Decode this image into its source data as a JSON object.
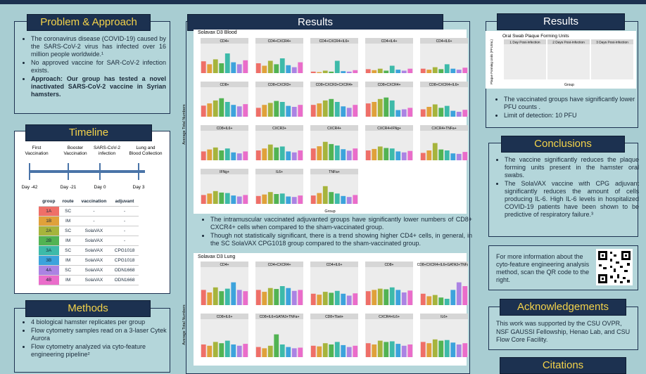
{
  "problem": {
    "title": "Problem & Approach",
    "bullets": [
      "The coronavirus disease (COVID-19) caused by the SARS-CoV-2 virus has infected over 16 million people worldwide.¹",
      "No approved vaccine for SAR-CoV-2 infection exists.",
      "Approach: Our group has tested a novel inactivated SARS-CoV-2 vaccine in Syrian hamsters."
    ]
  },
  "timeline": {
    "title": "Timeline",
    "events": [
      {
        "label": "First Vaccination",
        "day": "Day -42"
      },
      {
        "label": "Booster Vaccination",
        "day": "Day -21"
      },
      {
        "label": "SARS-CoV-2 infection",
        "day": "Day 0"
      },
      {
        "label": "Lung and Blood Collection",
        "day": "Day 3"
      }
    ],
    "table": {
      "header": [
        "group",
        "route",
        "vaccination",
        "adjuvant"
      ],
      "rows": [
        {
          "group": "1A",
          "route": "SC",
          "vaccination": "-",
          "adjuvant": "-",
          "color": "#ef6f68"
        },
        {
          "group": "1B",
          "route": "IM",
          "vaccination": "-",
          "adjuvant": "-",
          "color": "#e0a13a"
        },
        {
          "group": "2A",
          "route": "SC",
          "vaccination": "SolaVAX",
          "adjuvant": "-",
          "color": "#a6b43c"
        },
        {
          "group": "2B",
          "route": "IM",
          "vaccination": "SolaVAX",
          "adjuvant": "-",
          "color": "#52b353"
        },
        {
          "group": "3A",
          "route": "SC",
          "vaccination": "SolaVAX",
          "adjuvant": "CPG1018",
          "color": "#3dbaa9"
        },
        {
          "group": "3B",
          "route": "IM",
          "vaccination": "SolaVAX",
          "adjuvant": "CPG1018",
          "color": "#3ca3dc"
        },
        {
          "group": "4A",
          "route": "SC",
          "vaccination": "SolaVAX",
          "adjuvant": "ODN1668",
          "color": "#ab83e3"
        },
        {
          "group": "4B",
          "route": "IM",
          "vaccination": "SolaVAX",
          "adjuvant": "ODN1668",
          "color": "#ea6dca"
        }
      ]
    }
  },
  "methods": {
    "title": "Methods",
    "bullets": [
      "4 biological hamster replicates per group",
      "Flow cytometry samples read on a 3-laser Cytek Aurora",
      "Flow cytometry analyzed via cyto-feature engineering pipeline²"
    ]
  },
  "results": {
    "title": "Results",
    "blood": {
      "title": "Solavax D3 Blood",
      "y_label": "Average Total Numbers",
      "x_label": "Group",
      "panels": [
        {
          "title": "CD4+",
          "ylim": [
            0,
            30000
          ],
          "values": [
            12000,
            9000,
            14000,
            10000,
            20000,
            11000,
            9000,
            13000
          ]
        },
        {
          "title": "CD4+CXCR4+",
          "ylim": [
            0,
            6000
          ],
          "values": [
            2000,
            1500,
            2500,
            1800,
            3000,
            1600,
            1200,
            2200
          ]
        },
        {
          "title": "CD4+CXCR4+IL6+",
          "ylim": [
            0,
            6000
          ],
          "values": [
            300,
            200,
            500,
            300,
            2500,
            400,
            300,
            600
          ]
        },
        {
          "title": "CD4+IL4+",
          "ylim": [
            0,
            6000
          ],
          "values": [
            800,
            600,
            900,
            500,
            1500,
            700,
            500,
            900
          ]
        },
        {
          "title": "CD4+IL6+",
          "ylim": [
            0,
            6000
          ],
          "values": [
            900,
            700,
            1200,
            800,
            1800,
            900,
            700,
            1100
          ]
        },
        {
          "title": "CD8+",
          "ylim": [
            0,
            40000
          ],
          "values": [
            15000,
            18000,
            22000,
            25000,
            20000,
            16000,
            14000,
            17000
          ]
        },
        {
          "title": "CD8+CXCR3+",
          "ylim": [
            0,
            3000
          ],
          "values": [
            900,
            1200,
            1400,
            1600,
            1500,
            1100,
            1000,
            1200
          ]
        },
        {
          "title": "CD8+CXCR3+CXCR4+",
          "ylim": [
            0,
            20000
          ],
          "values": [
            8000,
            9000,
            11000,
            12000,
            10000,
            7000,
            6000,
            8000
          ]
        },
        {
          "title": "CD8+CXCR4+",
          "ylim": [
            0,
            40000
          ],
          "values": [
            18000,
            20000,
            24000,
            26000,
            22000,
            9000,
            10000,
            12000
          ]
        },
        {
          "title": "CD8+CXCR4+IL6+",
          "ylim": [
            0,
            6000
          ],
          "values": [
            1500,
            2000,
            2500,
            1800,
            2200,
            1200,
            1000,
            1400
          ]
        },
        {
          "title": "CD8+IL6+",
          "ylim": [
            0,
            30000
          ],
          "values": [
            9000,
            11000,
            13000,
            10000,
            12000,
            8000,
            7000,
            9000
          ]
        },
        {
          "title": "CXCR3+",
          "ylim": [
            0,
            30000
          ],
          "values": [
            10000,
            12000,
            16000,
            13000,
            14000,
            9000,
            8000,
            10000
          ]
        },
        {
          "title": "CXCR4+",
          "ylim": [
            0,
            40000
          ],
          "values": [
            16000,
            19000,
            25000,
            22000,
            20000,
            15000,
            13000,
            16000
          ]
        },
        {
          "title": "CXCR4+IFNg+",
          "ylim": [
            0,
            6000
          ],
          "values": [
            2000,
            2300,
            2800,
            2500,
            2400,
            1800,
            1600,
            1900
          ]
        },
        {
          "title": "CXCR4+TNFa+",
          "ylim": [
            0,
            6000
          ],
          "values": [
            1500,
            2000,
            3500,
            2200,
            2000,
            1400,
            1300,
            1700
          ]
        },
        {
          "title": "IFNg+",
          "ylim": [
            0,
            6000
          ],
          "values": [
            1800,
            2100,
            2600,
            2300,
            2200,
            1700,
            1500,
            1800
          ]
        },
        {
          "title": "IL6+",
          "ylim": [
            0,
            6000
          ],
          "values": [
            1600,
            1900,
            2400,
            2000,
            2100,
            1500,
            1400,
            1700
          ]
        },
        {
          "title": "TNFa+",
          "ylim": [
            0,
            6000
          ],
          "values": [
            1700,
            2200,
            3600,
            2400,
            2100,
            1600,
            1400,
            1800
          ]
        }
      ]
    },
    "blood_bullets": [
      "The intramuscular vaccinated adjuvanted groups have significantly lower numbers of CD8+ CXCR4+ cells when compared to the sham-vaccinated group.",
      "Though not statistically significant, there is a trend showing higher CD4+ cells, in general, in the SC SolaVAX CPG1018 group compared to the sham-vaccinated group."
    ],
    "lung": {
      "title": "Solavax D3 Lung",
      "y_label": "Average Total Numbers",
      "panels": [
        {
          "title": "CD4+",
          "ylim": [
            0,
            300000
          ],
          "values": [
            120000,
            100000,
            140000,
            110000,
            130000,
            180000,
            120000,
            110000
          ]
        },
        {
          "title": "CD4+CXCR4+",
          "ylim": [
            0,
            20000
          ],
          "values": [
            8000,
            7000,
            9000,
            8500,
            10000,
            9000,
            7500,
            8000
          ]
        },
        {
          "title": "CD4+IL6+",
          "ylim": [
            0,
            20000
          ],
          "values": [
            6000,
            5500,
            7000,
            6500,
            7500,
            6000,
            5000,
            6200
          ]
        },
        {
          "title": "CD8+",
          "ylim": [
            0,
            300000
          ],
          "values": [
            110000,
            120000,
            130000,
            125000,
            140000,
            120000,
            100000,
            115000
          ]
        },
        {
          "title": "CD8+CXCR4+IL6+GATA3+TNFa+",
          "ylim": [
            0,
            3000
          ],
          "values": [
            900,
            700,
            800,
            600,
            500,
            1200,
            1800,
            1500
          ]
        },
        {
          "title": "CD8+IL6+",
          "ylim": [
            0,
            30000
          ],
          "values": [
            10000,
            9000,
            12000,
            11000,
            13000,
            10000,
            9000,
            10500
          ]
        },
        {
          "title": "CD8+IL6+GATA3+TNFa+",
          "ylim": [
            0,
            3000
          ],
          "values": [
            800,
            700,
            900,
            1800,
            1000,
            800,
            700,
            750
          ]
        },
        {
          "title": "CD8+Tbet+",
          "ylim": [
            0,
            30000
          ],
          "values": [
            9000,
            8500,
            11000,
            10000,
            12000,
            9500,
            8000,
            9000
          ]
        },
        {
          "title": "CXCR4+IL6+",
          "ylim": [
            0,
            30000
          ],
          "values": [
            11000,
            10000,
            13000,
            12000,
            12500,
            10500,
            9000,
            10000
          ]
        },
        {
          "title": "IL6+",
          "ylim": [
            0,
            30000
          ],
          "values": [
            12000,
            11000,
            14000,
            13000,
            13500,
            11500,
            10000,
            11000
          ]
        }
      ]
    },
    "oral": {
      "title": "Results",
      "figure_title": "Oral Swab Plaque Forming Units",
      "panels": [
        "1 Day Post-Infection",
        "2 Days Post-Infection",
        "3 Days Post-Infection"
      ],
      "y_label": "Plaque Forming Units (PFU/mL)",
      "x_label": "Group",
      "bullets": [
        "The vaccinated groups have significantly lower PFU counts .",
        "Limit of detection: 10 PFU"
      ]
    }
  },
  "conclusions": {
    "title": "Conclusions",
    "bullets": [
      "The vaccine significantly reduces the plaque forming units present in the hamster oral swabs.",
      "The SolaVAX vaccine with CPG adjuvant significantly reduces the amount of cells producing IL-6. High IL-6 levels in hospitalized COVID-19 patients have been shown to be predictive of respiratory failure.³"
    ]
  },
  "qr_note": "For more information about the cyto-feature engineering analysis method, scan the QR code to the right.",
  "acknowledgements": {
    "title": "Acknowledgements",
    "text": "This work was supported by the CSU OVPR, NSF GAUSSI Fellowship, Henao Lab, and CSU Flow Core Facility."
  },
  "citations": {
    "title": "Citations"
  }
}
